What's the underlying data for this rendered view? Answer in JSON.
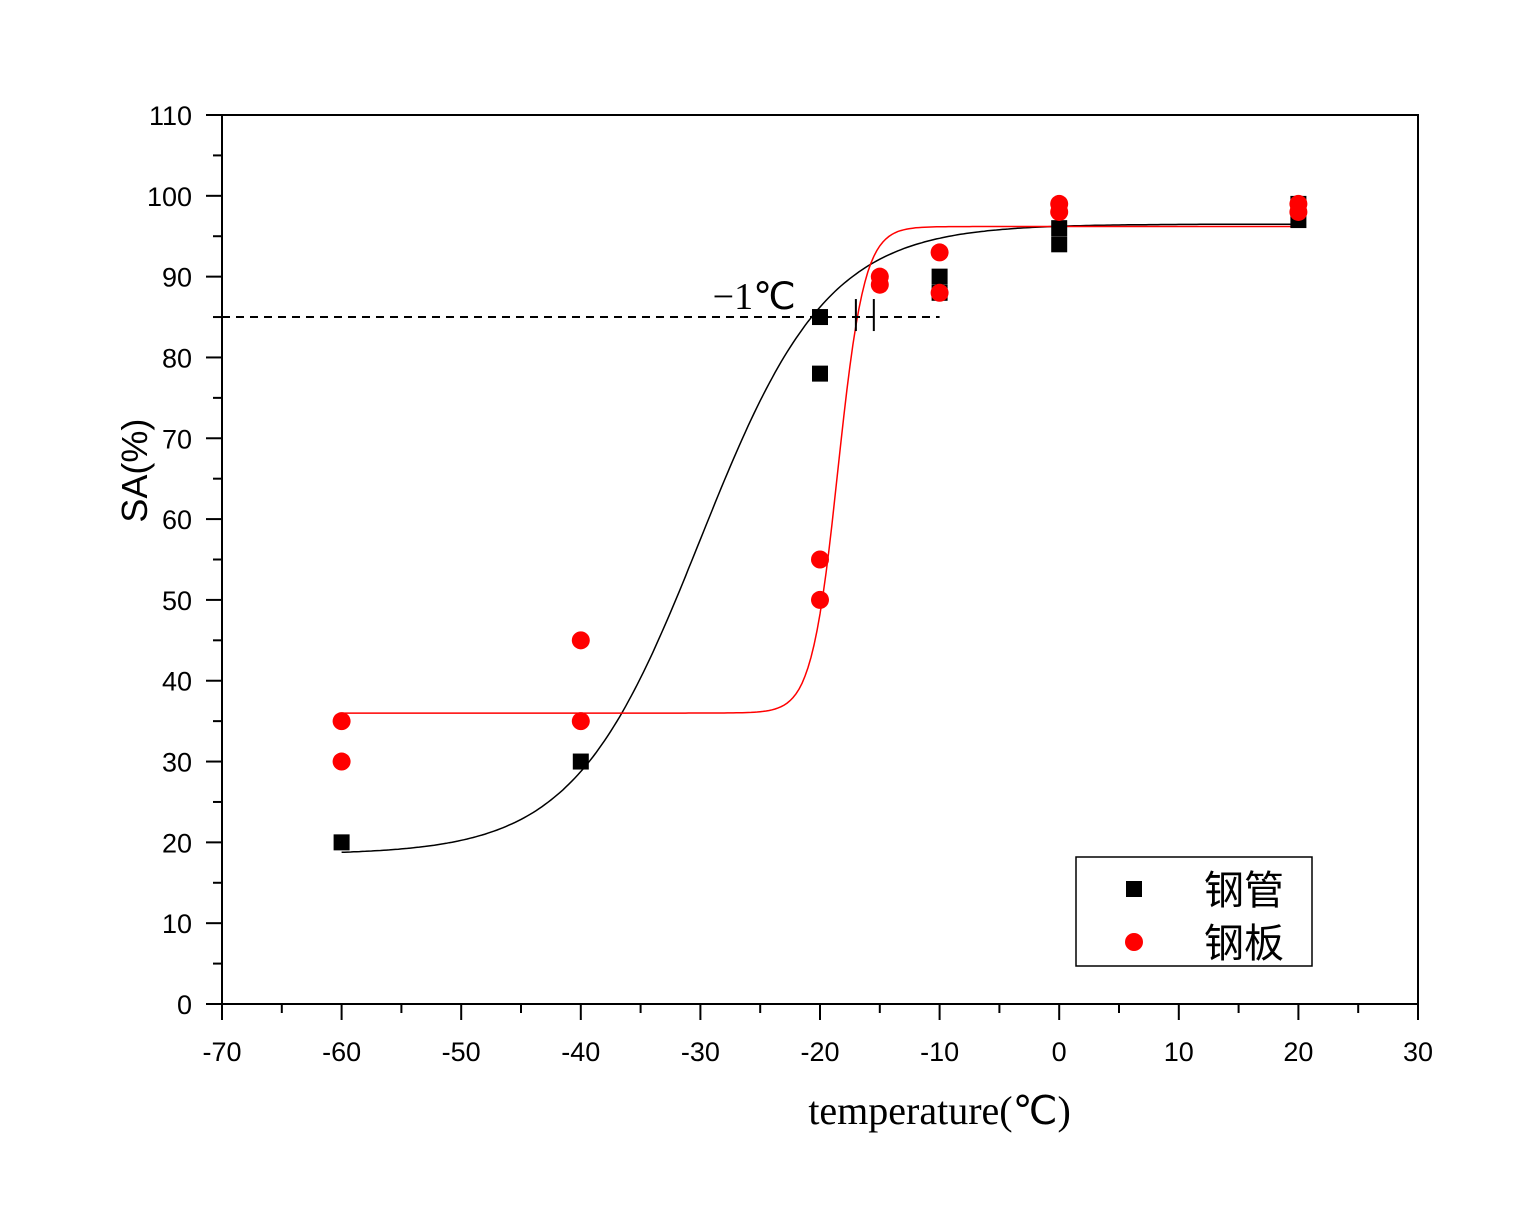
{
  "chart_data": {
    "type": "scatter",
    "xlabel": "temperature(℃)",
    "ylabel": "SA(%)",
    "xlim": [
      -70,
      30
    ],
    "ylim": [
      0,
      110
    ],
    "x_ticks": [
      -70,
      -60,
      -50,
      -40,
      -30,
      -20,
      -10,
      0,
      10,
      20,
      30
    ],
    "y_ticks": [
      0,
      10,
      20,
      30,
      40,
      50,
      60,
      70,
      80,
      90,
      100,
      110
    ],
    "grid": false,
    "legend_position": "bottom-right",
    "reference_line": {
      "y": 85,
      "x_from": -70,
      "x_to": -10,
      "style": "dashed"
    },
    "annotation": {
      "text": "−1℃",
      "x": -25.5,
      "y": 87.5
    },
    "markers": [
      {
        "x": -17.0,
        "y": 85
      },
      {
        "x": -15.5,
        "y": 85
      }
    ],
    "series": [
      {
        "name": "钢管",
        "marker": "square",
        "color": "#000000",
        "points": [
          {
            "x": -60,
            "y": 20
          },
          {
            "x": -40,
            "y": 30
          },
          {
            "x": -20,
            "y": 85
          },
          {
            "x": -20,
            "y": 78
          },
          {
            "x": -10,
            "y": 90
          },
          {
            "x": -10,
            "y": 88
          },
          {
            "x": 0,
            "y": 96
          },
          {
            "x": 0,
            "y": 94
          },
          {
            "x": 20,
            "y": 99
          },
          {
            "x": 20,
            "y": 97
          }
        ],
        "fit": {
          "A1": 18.5,
          "A2": 96.5,
          "x0": -30,
          "dx": 5.3
        }
      },
      {
        "name": "钢板",
        "marker": "circle",
        "color": "#ff0000",
        "points": [
          {
            "x": -60,
            "y": 35
          },
          {
            "x": -60,
            "y": 30
          },
          {
            "x": -40,
            "y": 45
          },
          {
            "x": -40,
            "y": 35
          },
          {
            "x": -20,
            "y": 55
          },
          {
            "x": -20,
            "y": 50
          },
          {
            "x": -15,
            "y": 90
          },
          {
            "x": -15,
            "y": 89
          },
          {
            "x": -10,
            "y": 93
          },
          {
            "x": -10,
            "y": 88
          },
          {
            "x": 0,
            "y": 99
          },
          {
            "x": 0,
            "y": 98
          },
          {
            "x": 20,
            "y": 99
          },
          {
            "x": 20,
            "y": 98
          }
        ],
        "fit": {
          "A1": 36,
          "A2": 96.2,
          "x0": -18.5,
          "dx": 1.1
        }
      }
    ]
  }
}
